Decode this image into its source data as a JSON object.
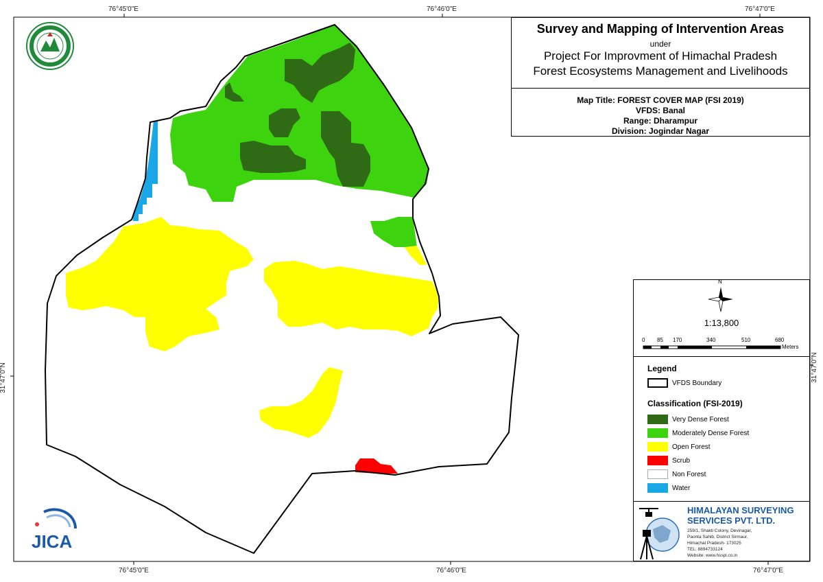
{
  "coords": {
    "top": [
      "76°45'0\"E",
      "76°46'0\"E",
      "76°47'0\"E"
    ],
    "bottom": [
      "76°45'0\"E",
      "76°46'0\"E",
      "76°47'0\"E"
    ],
    "left": "31°47'0\"N",
    "right": "31°47'0\"N"
  },
  "title": {
    "main": "Survey and Mapping of Intervention Areas",
    "under": "under",
    "project_line1": "Project For Improvment of Himachal Pradesh",
    "project_line2": "Forest Ecosystems Management and Livelihoods"
  },
  "info": {
    "map_title": "Map Title: FOREST COVER MAP (FSI 2019)",
    "vfds": "VFDS: Banal",
    "range": "Range: Dharampur",
    "division": "Division: Jogindar Nagar"
  },
  "scale": {
    "north": "N",
    "ratio": "1:13,800",
    "ticks": [
      "0",
      "85",
      "170",
      "340",
      "510",
      "680"
    ],
    "unit": "Meters"
  },
  "legend": {
    "title": "Legend",
    "boundary_label": "VFDS Boundary",
    "classification_title": "Classification (FSI-2019)",
    "items": [
      {
        "label": "Very Dense Forest",
        "color": "#2e6b14"
      },
      {
        "label": "Moderately Dense Forest",
        "color": "#3dd40f"
      },
      {
        "label": "Open Forest",
        "color": "#ffff00"
      },
      {
        "label": "Scrub",
        "color": "#ff0000"
      },
      {
        "label": "Non Forest",
        "color": "#ffffff"
      },
      {
        "label": "Water",
        "color": "#1aa7e6"
      }
    ]
  },
  "company": {
    "name_line1": "HIMALAYAN SURVEYING",
    "name_line2": "SERVICES PVT. LTD.",
    "address": [
      "259/1, Shakti Colony, Devinagar,",
      "Paonta Sahib, District Sirmaur,",
      "Himachal Pradesh- 173025",
      "TEL: 8894733124",
      "Website: www.hsspl.co.in"
    ]
  },
  "logos": {
    "jica": "JICA"
  }
}
